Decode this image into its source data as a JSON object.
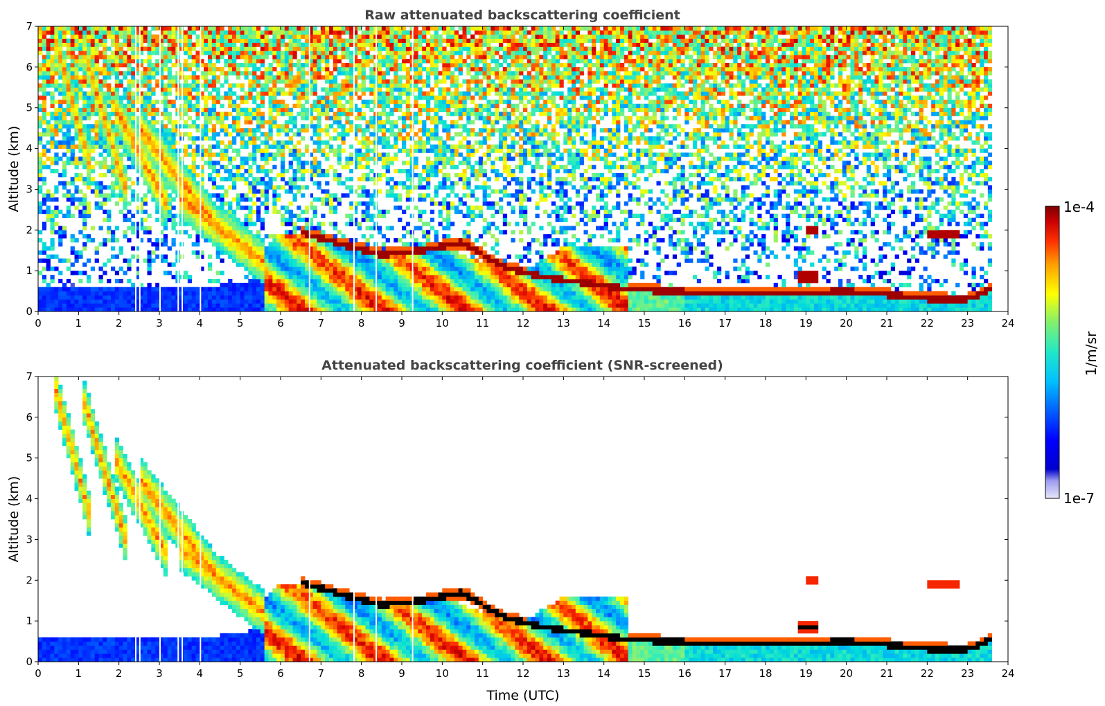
{
  "chart_data": [
    {
      "type": "heatmap",
      "title": "Raw attenuated backscattering coefficient",
      "xlabel": "",
      "ylabel": "Altitude (km)",
      "xlim": [
        0,
        24
      ],
      "ylim": [
        0,
        7
      ],
      "xticks": [
        "0",
        "1",
        "2",
        "3",
        "4",
        "5",
        "6",
        "7",
        "8",
        "9",
        "10",
        "11",
        "12",
        "13",
        "14",
        "15",
        "16",
        "17",
        "18",
        "19",
        "20",
        "21",
        "22",
        "23",
        "24"
      ],
      "yticks": [
        "0",
        "1",
        "2",
        "3",
        "4",
        "5",
        "6",
        "7"
      ],
      "screened": false,
      "features": {
        "boundary_layer": {
          "x": [
            0,
            1,
            2,
            3,
            4,
            5,
            5.6
          ],
          "top": [
            0.6,
            0.6,
            0.6,
            0.6,
            0.6,
            0.7,
            0.9
          ]
        },
        "mixed_layer": {
          "x": [
            5.6,
            6,
            7,
            8,
            9,
            10,
            11,
            12,
            13,
            14,
            14.6
          ],
          "top": [
            1.6,
            1.9,
            1.8,
            1.5,
            1.5,
            1.6,
            1.2,
            1.0,
            1.6,
            1.6,
            1.6
          ]
        },
        "cloud_base": {
          "x": [
            6.5,
            7.5,
            8.5,
            9.5,
            10.5,
            11.5,
            12.5,
            14.6,
            16,
            18,
            19,
            20,
            21,
            22,
            23,
            23.6
          ],
          "alt": [
            1.95,
            1.65,
            1.4,
            1.5,
            1.7,
            1.1,
            0.85,
            0.55,
            0.48,
            0.42,
            0.45,
            0.5,
            0.42,
            0.32,
            0.3,
            0.55
          ]
        },
        "elevated_layers": [
          {
            "x": [
              22,
              22.8
            ],
            "alt": 1.9
          },
          {
            "x": [
              19,
              19.3
            ],
            "alt": 2.0
          },
          {
            "x": [
              18.8,
              19.3
            ],
            "alt": 0.85
          }
        ],
        "virga_streaks": [
          {
            "x0": 0.4,
            "x1": 1.3,
            "top": 6.8,
            "bottom": 3.5
          },
          {
            "x0": 1.1,
            "x1": 2.2,
            "top": 6.5,
            "bottom": 2.9
          },
          {
            "x0": 1.9,
            "x1": 3.2,
            "top": 5.0,
            "bottom": 2.6
          },
          {
            "x0": 2.5,
            "x1": 4.5,
            "top": 4.5,
            "bottom": 2.0
          },
          {
            "x0": 3.5,
            "x1": 5.6,
            "top": 2.8,
            "bottom": 1.2
          }
        ],
        "data_gaps": [
          2.4,
          2.5,
          3.0,
          3.45,
          3.55,
          4.0,
          6.7,
          7.8,
          8.35,
          9.25
        ],
        "data_end": 23.6
      }
    },
    {
      "type": "heatmap",
      "title": "Attenuated backscattering coefficient (SNR-screened)",
      "xlabel": "Time (UTC)",
      "ylabel": "Altitude (km)",
      "xlim": [
        0,
        24
      ],
      "ylim": [
        0,
        7
      ],
      "xticks": [
        "0",
        "1",
        "2",
        "3",
        "4",
        "5",
        "6",
        "7",
        "8",
        "9",
        "10",
        "11",
        "12",
        "13",
        "14",
        "15",
        "16",
        "17",
        "18",
        "19",
        "20",
        "21",
        "22",
        "23",
        "24"
      ],
      "yticks": [
        "0",
        "1",
        "2",
        "3",
        "4",
        "5",
        "6",
        "7"
      ],
      "screened": true
    }
  ],
  "colorbar": {
    "label": "1/m/sr",
    "max_label": "1e-4",
    "min_label": "1e-7",
    "vmin": 1e-07,
    "vmax": 0.0001,
    "scale": "log",
    "colormap": [
      "#e6e6fa",
      "#0000cd",
      "#0000ff",
      "#0050ff",
      "#00a0ff",
      "#00dcdc",
      "#40f0b0",
      "#a0f060",
      "#ffff00",
      "#ffa000",
      "#ff3000",
      "#d00000",
      "#7f0000"
    ]
  }
}
